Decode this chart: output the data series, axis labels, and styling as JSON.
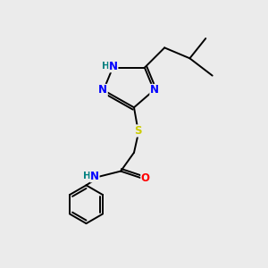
{
  "background_color": "#ebebeb",
  "bond_color": "#000000",
  "atom_colors": {
    "N": "#0000ff",
    "H": "#008080",
    "S": "#cccc00",
    "O": "#ff0000",
    "C": "#000000"
  }
}
